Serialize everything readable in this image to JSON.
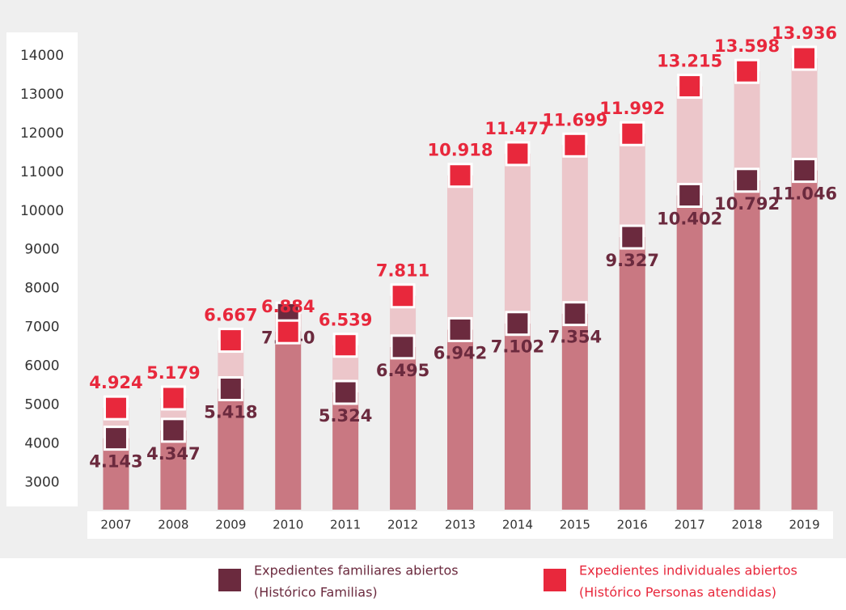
{
  "chart_data": {
    "type": "bar",
    "categories": [
      "2007",
      "2008",
      "2009",
      "2010",
      "2011",
      "2012",
      "2013",
      "2014",
      "2015",
      "2016",
      "2017",
      "2018",
      "2019"
    ],
    "series": [
      {
        "name": "Expedientes familiares abiertos",
        "legend_detail": "(Histórico Familias)",
        "color": "#6b2a3e",
        "bar_color": "#c97882",
        "values": [
          4143,
          4347,
          5418,
          7340,
          5324,
          6495,
          6942,
          7102,
          7354,
          9327,
          10402,
          10792,
          11046
        ],
        "value_labels": [
          "4.143",
          "4.347",
          "5.418",
          "7.340",
          "5.324",
          "6.495",
          "6.942",
          "7.102",
          "7.354",
          "9.327",
          "10.402",
          "10.792",
          "11.046"
        ]
      },
      {
        "name": "Expedientes individuales abiertos",
        "legend_detail": "(Histórico Personas atendidas)",
        "color": "#e8283c",
        "bar_color": "#ecc6ca",
        "values": [
          4924,
          5179,
          6667,
          6884,
          6539,
          7811,
          10918,
          11477,
          11699,
          11992,
          13215,
          13598,
          13936
        ],
        "value_labels": [
          "4.924",
          "5.179",
          "6.667",
          "6.884",
          "6.539",
          "7.811",
          "10.918",
          "11.477",
          "11.699",
          "11.992",
          "13.215",
          "13.598",
          "13.936"
        ]
      }
    ],
    "ylim": [
      2300,
      15000
    ],
    "yticks": [
      3000,
      4000,
      5000,
      6000,
      7000,
      8000,
      9000,
      10000,
      11000,
      12000,
      13000,
      14000
    ]
  }
}
